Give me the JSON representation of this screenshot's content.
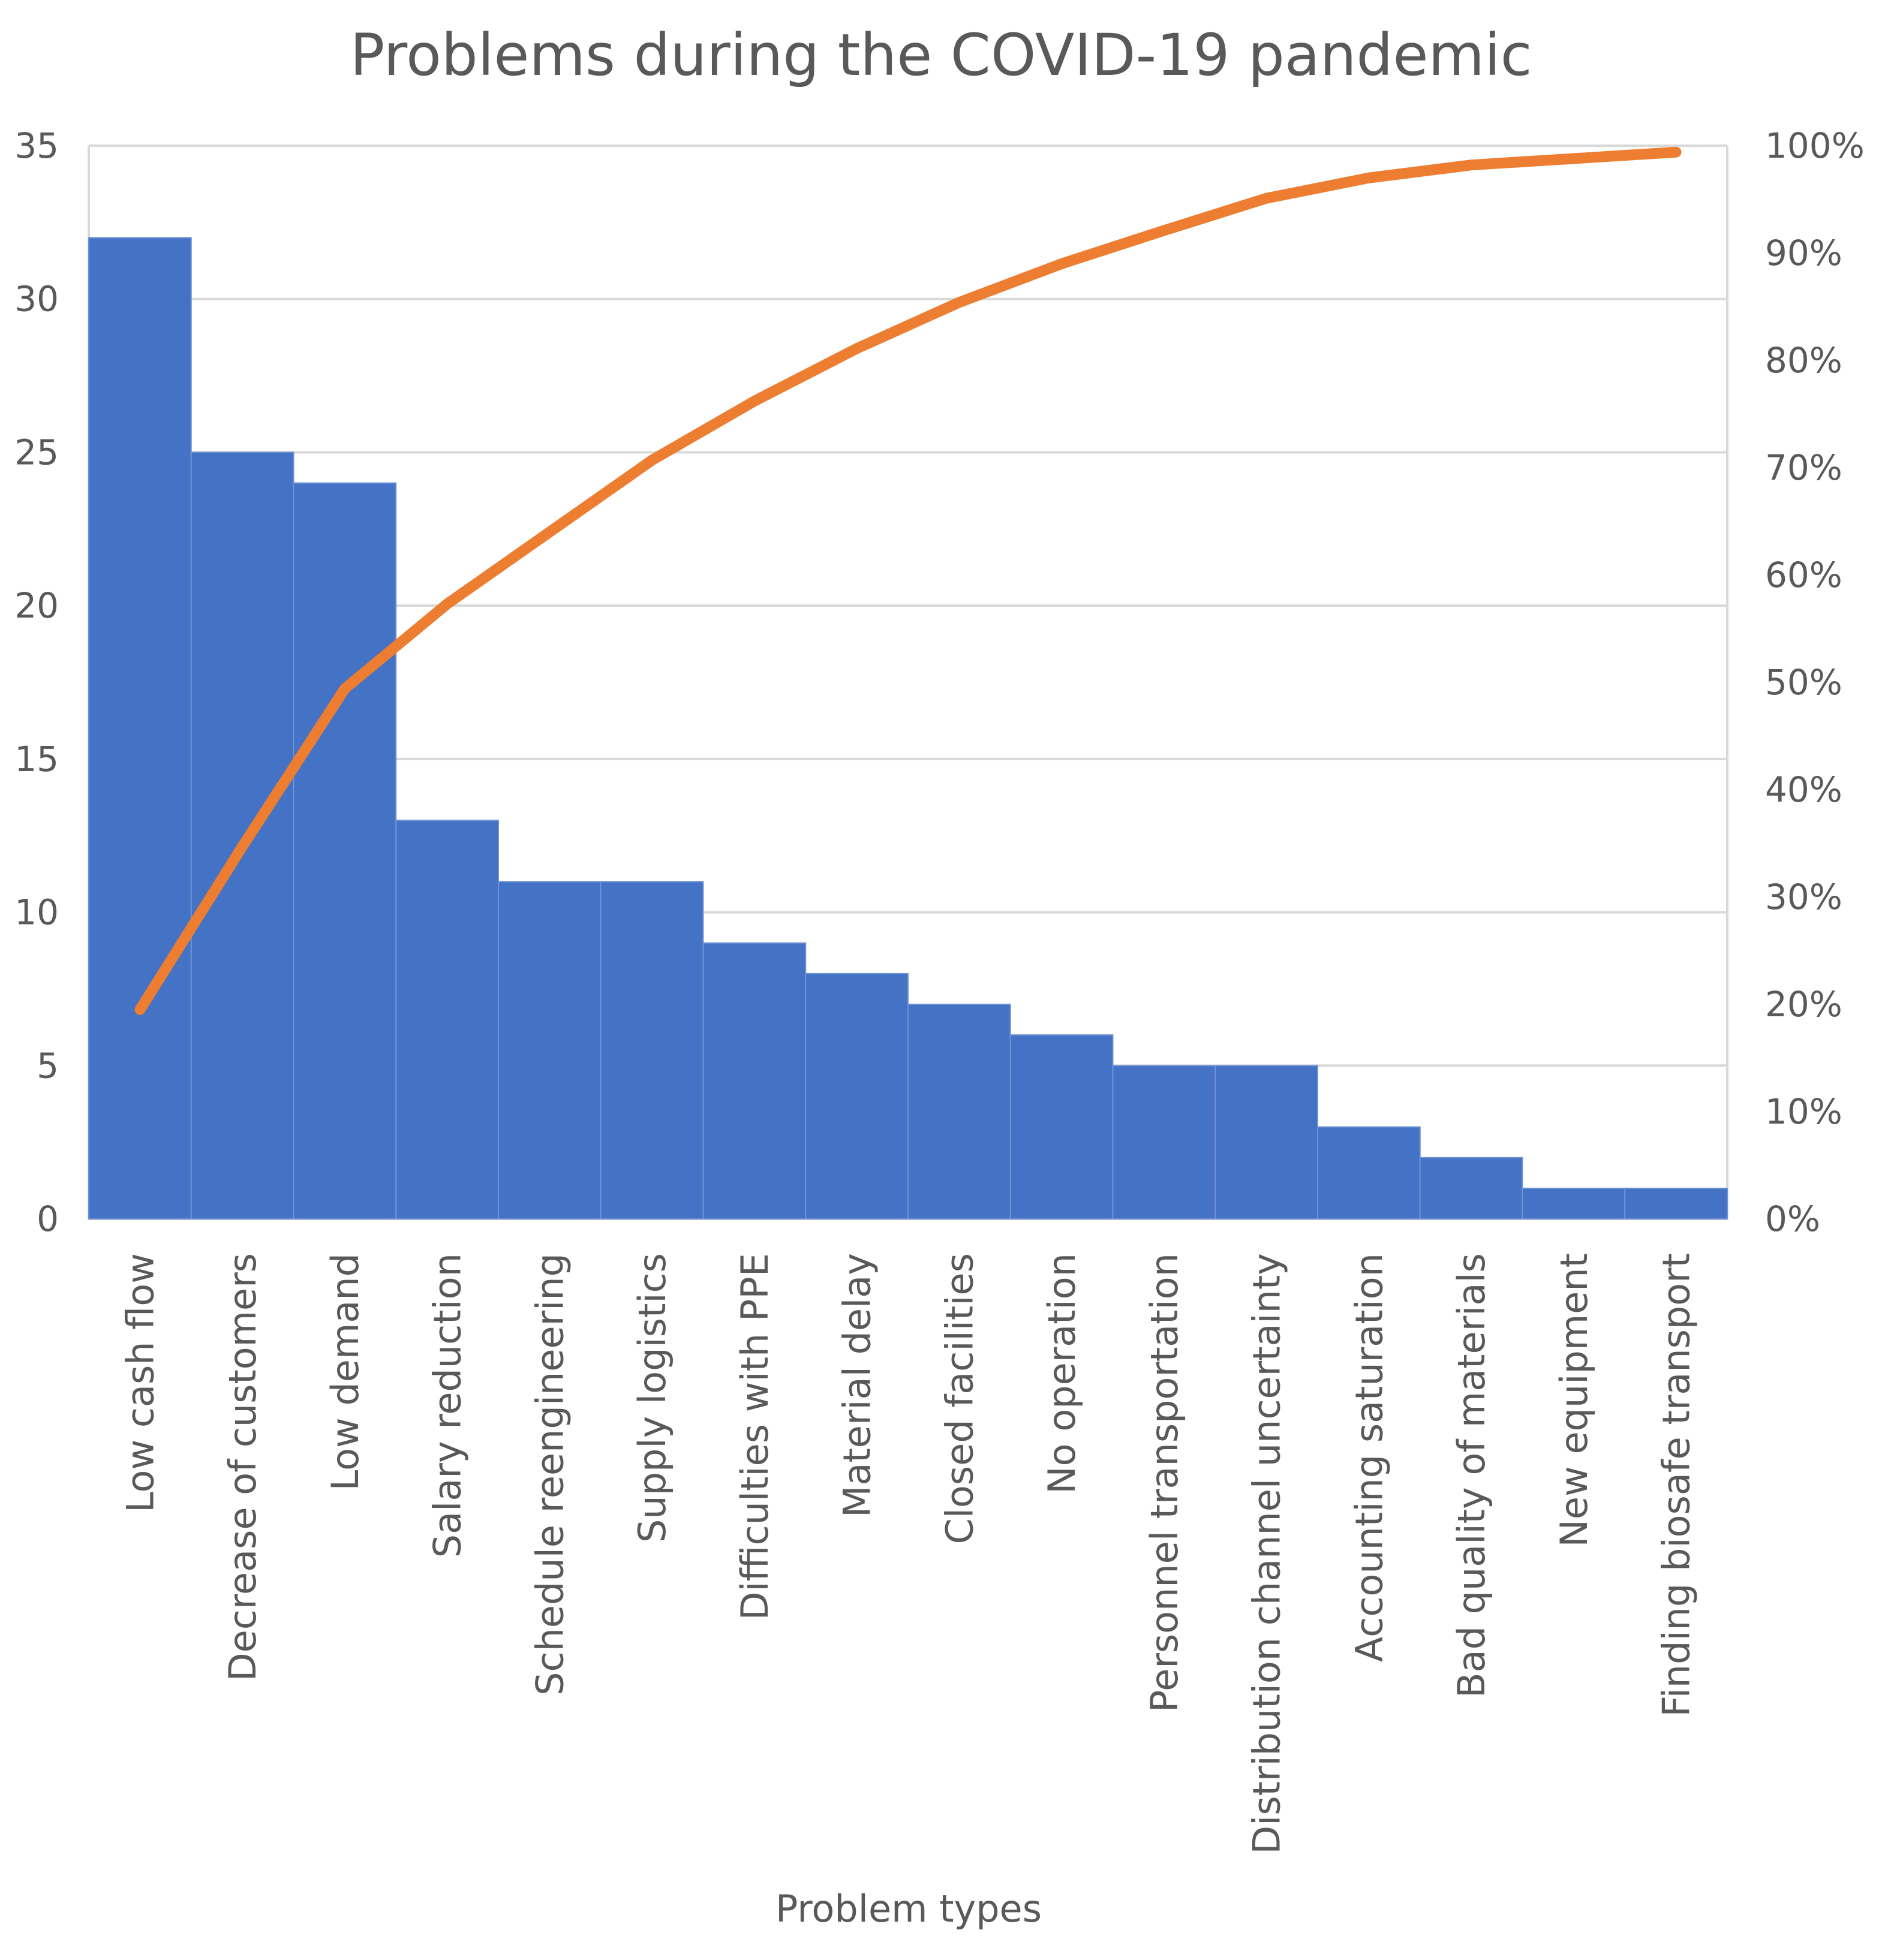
{
  "chart_data": {
    "type": "bar",
    "title": "Problems during the COVID-19 pandemic",
    "xlabel": "Problem types",
    "ylabel": "",
    "y2label": "",
    "ylim": [
      0,
      35
    ],
    "y2lim": [
      0,
      100
    ],
    "yticks": [
      "0",
      "5",
      "10",
      "15",
      "20",
      "25",
      "30",
      "35"
    ],
    "y2ticks": [
      "0%",
      "10%",
      "20%",
      "30%",
      "40%",
      "50%",
      "60%",
      "70%",
      "80%",
      "90%",
      "100%"
    ],
    "grid": true,
    "legend": "none",
    "categories": [
      "Low cash flow",
      "Decrease of customers",
      "Low demand",
      "Salary reduction",
      "Schedule reengineering",
      "Supply logistics",
      "Difficulties with PPE",
      "Material delay",
      "Closed facilities",
      "No operation",
      "Personnel transportation",
      "Distribution channel uncertainty",
      "Accounting saturation",
      "Bad quality of materials",
      "New equipment",
      "Finding biosafe transport"
    ],
    "series": [
      {
        "type": "bar",
        "axis": "left",
        "color": "#4472C4",
        "values": [
          32,
          25,
          24,
          13,
          11,
          11,
          9,
          8,
          7,
          6,
          5,
          5,
          3,
          2,
          1,
          1
        ]
      },
      {
        "type": "line",
        "axis": "right",
        "color": "#ED7D31",
        "values": [
          19.5,
          34.7,
          49.4,
          57.3,
          64.0,
          70.7,
          76.2,
          81.1,
          85.4,
          89.0,
          92.1,
          95.1,
          97.0,
          98.2,
          98.8,
          99.4
        ]
      }
    ]
  }
}
